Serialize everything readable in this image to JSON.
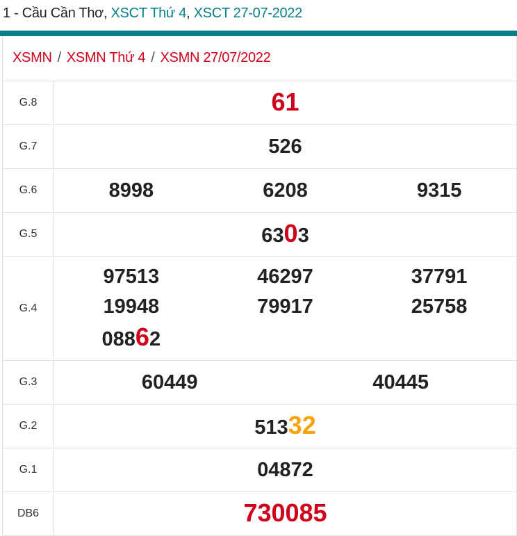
{
  "header": {
    "prefix": "1 - Cầu Cần Thơ, ",
    "link1": "XSCT Thứ 4",
    "comma": ", ",
    "link2": "XSCT 27-07-2022"
  },
  "breadcrumb": [
    "XSMN",
    "XSMN Thứ 4",
    "XSMN 27/07/2022"
  ],
  "breadcrumb_sep": "/",
  "colors": {
    "teal": "#077f85",
    "red": "#d0021b",
    "orange": "#f7a20b"
  },
  "prizes": [
    {
      "label": "G.8",
      "numbers": [
        [
          {
            "t": "61",
            "s": "big-red"
          }
        ]
      ]
    },
    {
      "label": "G.7",
      "numbers": [
        [
          {
            "t": "526"
          }
        ]
      ]
    },
    {
      "label": "G.6",
      "numbers": [
        [
          {
            "t": "8998"
          }
        ],
        [
          {
            "t": "6208"
          }
        ],
        [
          {
            "t": "9315"
          }
        ]
      ]
    },
    {
      "label": "G.5",
      "numbers": [
        [
          {
            "t": "63"
          },
          {
            "t": "0",
            "s": "hl-red"
          },
          {
            "t": "3"
          }
        ]
      ]
    },
    {
      "label": "G.4",
      "numbers": [
        [
          {
            "t": "97513"
          }
        ],
        [
          {
            "t": "46297"
          }
        ],
        [
          {
            "t": "37791"
          }
        ],
        [
          {
            "t": "19948"
          }
        ],
        [
          {
            "t": "79917"
          }
        ],
        [
          {
            "t": "25758"
          }
        ],
        [
          {
            "t": "088"
          },
          {
            "t": "6",
            "s": "hl-red"
          },
          {
            "t": "2"
          }
        ]
      ]
    },
    {
      "label": "G.3",
      "numbers": [
        [
          {
            "t": "60449"
          }
        ],
        [
          {
            "t": "40445"
          }
        ]
      ]
    },
    {
      "label": "G.2",
      "numbers": [
        [
          {
            "t": "513"
          },
          {
            "t": "32",
            "s": "hl-orange"
          }
        ]
      ]
    },
    {
      "label": "G.1",
      "numbers": [
        [
          {
            "t": "04872"
          }
        ]
      ]
    },
    {
      "label": "DB6",
      "numbers": [
        [
          {
            "t": "730085",
            "s": "big-red"
          }
        ]
      ]
    }
  ]
}
